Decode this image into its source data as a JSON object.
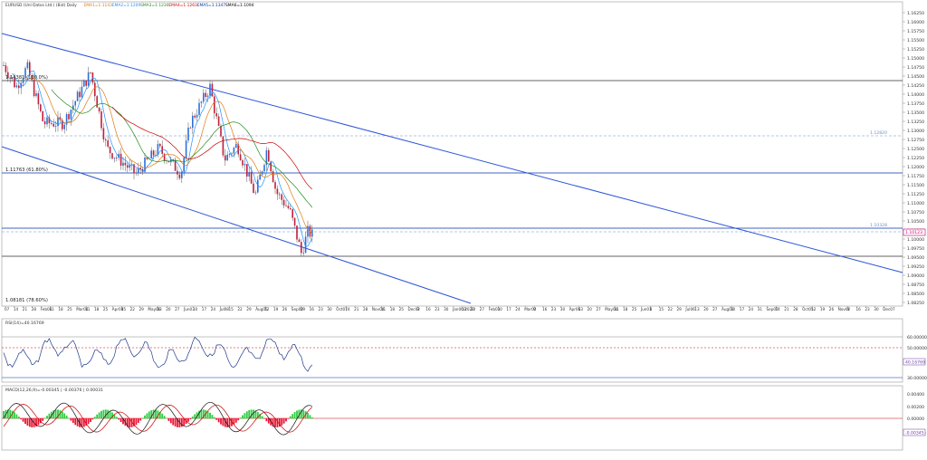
{
  "main_chart": {
    "legend": [
      {
        "text": "EURUSD (Unl Datos Ltd.) (Bid) Daily",
        "color": "#333333"
      },
      {
        "text": "EMA1=1.1143",
        "color": "#e07a10"
      },
      {
        "text": "EMA2=1.1209",
        "color": "#1e90ff"
      },
      {
        "text": "SMA3=1.1230",
        "color": "#228b22"
      },
      {
        "text": "EMA4=1.1263",
        "color": "#cc0000"
      },
      {
        "text": "EMA5=1.1347",
        "color": "#0033aa"
      },
      {
        "text": "SMA6=1.1094",
        "color": "#000000"
      }
    ],
    "price_labels": [
      "1.16250",
      "1.16000",
      "1.15750",
      "1.15500",
      "1.15250",
      "1.15000",
      "1.14750",
      "1.14500",
      "1.14250",
      "1.14000",
      "1.13750",
      "1.13500",
      "1.13250",
      "1.13000",
      "1.12750",
      "1.12500",
      "1.12250",
      "1.12000",
      "1.11750",
      "1.11500",
      "1.11250",
      "1.11000",
      "1.10750",
      "1.10500",
      "1.10250",
      "1.10000",
      "1.09750",
      "1.09500",
      "1.09250",
      "1.09000",
      "1.08750",
      "1.08500",
      "1.08250"
    ],
    "hline_labels": [
      {
        "text": "1.14381 (100.0%)"
      },
      {
        "text": "1.11763 (61.80%)"
      },
      {
        "text": "1.08181 (78.60%)"
      }
    ],
    "right_labels": [
      {
        "text": "1.12820"
      },
      {
        "text": "1.10328"
      }
    ],
    "current_price": "1.10123",
    "date_labels": [
      "07",
      "14",
      "21",
      "28",
      "Feb04",
      "11",
      "18",
      "25",
      "Mar04",
      "11",
      "18",
      "25",
      "Apr08",
      "15",
      "22",
      "29",
      "May06",
      "13",
      "20",
      "27",
      "Jun03",
      "10",
      "17",
      "24",
      "Jul08",
      "15",
      "22",
      "29",
      "Aug05",
      "12",
      "19",
      "26",
      "Sep02",
      "09",
      "16",
      "23",
      "30",
      "Oct07",
      "14",
      "21",
      "28",
      "Nov04",
      "11",
      "18",
      "25",
      "Dec02",
      "9",
      "16",
      "23",
      "30",
      "Jan06/2020",
      "13",
      "20",
      "27",
      "Feb03",
      "10",
      "17",
      "24",
      "Mar02",
      "9",
      "16",
      "23",
      "30",
      "Apr06",
      "13",
      "20",
      "27",
      "May04",
      "11",
      "18",
      "25",
      "Jun01",
      "8",
      "15",
      "22",
      "29",
      "Jul06",
      "13",
      "20",
      "27",
      "Aug03",
      "10",
      "17",
      "24",
      "31",
      "Sep07",
      "14",
      "21",
      "28",
      "Oct05",
      "12",
      "19",
      "26",
      "Nov02",
      "9",
      "16",
      "23",
      "30",
      "Dec07"
    ]
  },
  "rsi_panel": {
    "title": "RSI(14)=40.16769",
    "levels": [
      "60.00000",
      "50.00000",
      "30.00000"
    ],
    "current": "40.16769"
  },
  "macd_panel": {
    "title": "MACD(12,26,9)=-0.00345 | -0.00376 | 0.00031",
    "levels": [
      "0.00400",
      "0.00200",
      "0.00000",
      "-0.00200"
    ],
    "current": "-0.00345"
  }
}
